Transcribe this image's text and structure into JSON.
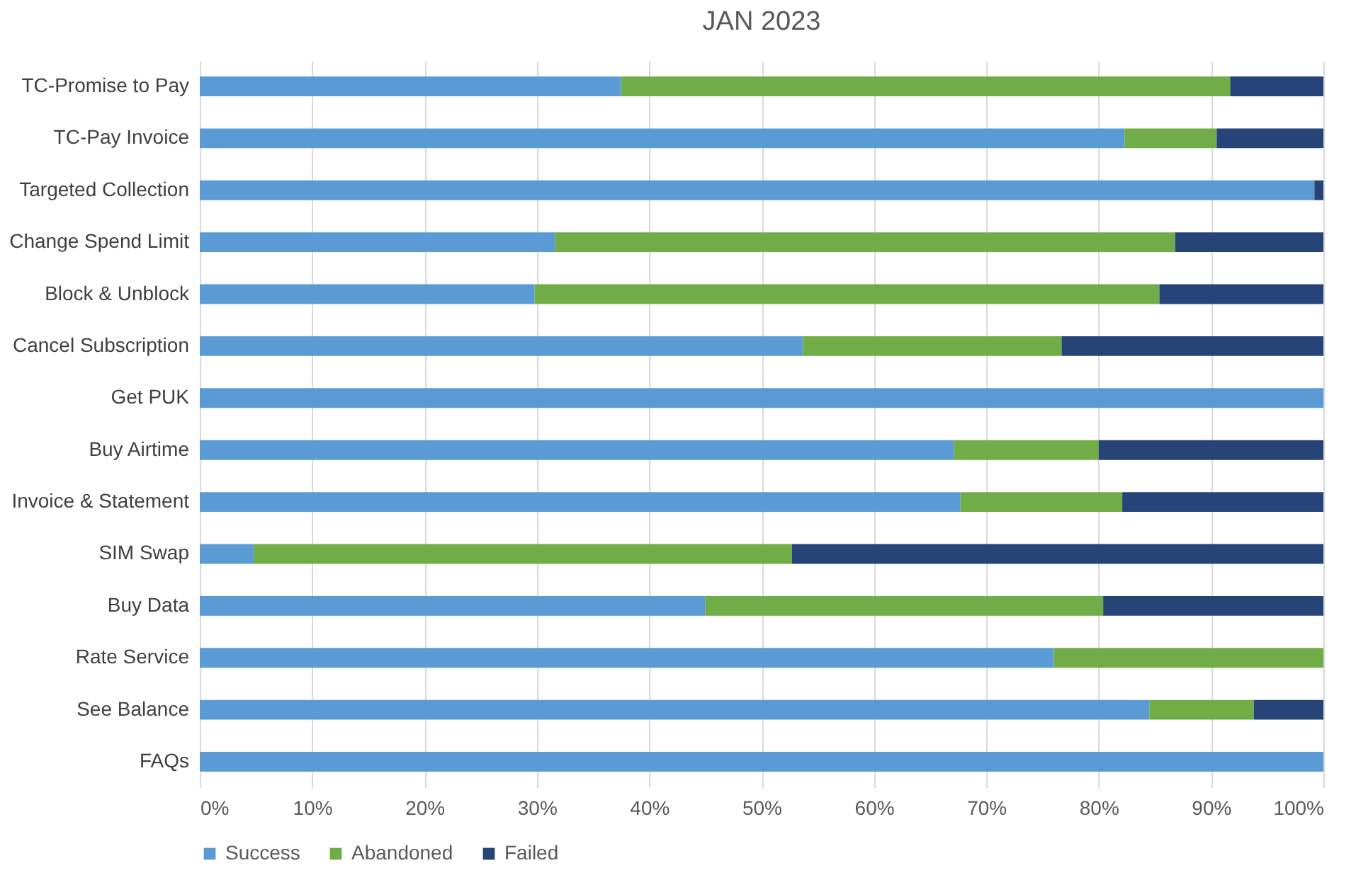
{
  "chart_data": {
    "type": "bar",
    "orientation": "horizontal",
    "stacked": true,
    "title": "JAN 2023",
    "categories": [
      "TC-Promise to Pay",
      "TC-Pay Invoice",
      "Targeted Collection",
      "Change Spend Limit",
      "Block & Unblock",
      "Cancel Subscription",
      "Get PUK",
      "Buy Airtime",
      "Invoice & Statement",
      "SIM Swap",
      "Buy Data",
      "Rate Service",
      "See Balance",
      "FAQs"
    ],
    "series": [
      {
        "name": "Success",
        "color": "#5b9bd5",
        "values": [
          37.5,
          82.3,
          99.2,
          31.6,
          29.8,
          53.7,
          100,
          67.1,
          67.7,
          4.8,
          45.0,
          76.0,
          84.5,
          100
        ]
      },
      {
        "name": "Abandoned",
        "color": "#70ad47",
        "values": [
          54.2,
          8.2,
          0,
          55.2,
          55.6,
          23.0,
          0,
          12.9,
          14.4,
          47.9,
          35.4,
          24.0,
          9.3,
          0
        ]
      },
      {
        "name": "Failed",
        "color": "#264478",
        "values": [
          8.3,
          9.5,
          0.8,
          13.2,
          14.6,
          23.3,
          0,
          20.0,
          17.9,
          47.3,
          19.6,
          0,
          6.2,
          0
        ]
      }
    ],
    "xlim": [
      0,
      100
    ],
    "xticks": [
      {
        "value": 0,
        "label": "0%"
      },
      {
        "value": 10,
        "label": "10%"
      },
      {
        "value": 20,
        "label": "20%"
      },
      {
        "value": 30,
        "label": "30%"
      },
      {
        "value": 40,
        "label": "40%"
      },
      {
        "value": 50,
        "label": "50%"
      },
      {
        "value": 60,
        "label": "60%"
      },
      {
        "value": 70,
        "label": "70%"
      },
      {
        "value": 80,
        "label": "80%"
      },
      {
        "value": 90,
        "label": "90%"
      },
      {
        "value": 100,
        "label": "100%"
      }
    ],
    "grid": "x",
    "legend": "bottom"
  }
}
